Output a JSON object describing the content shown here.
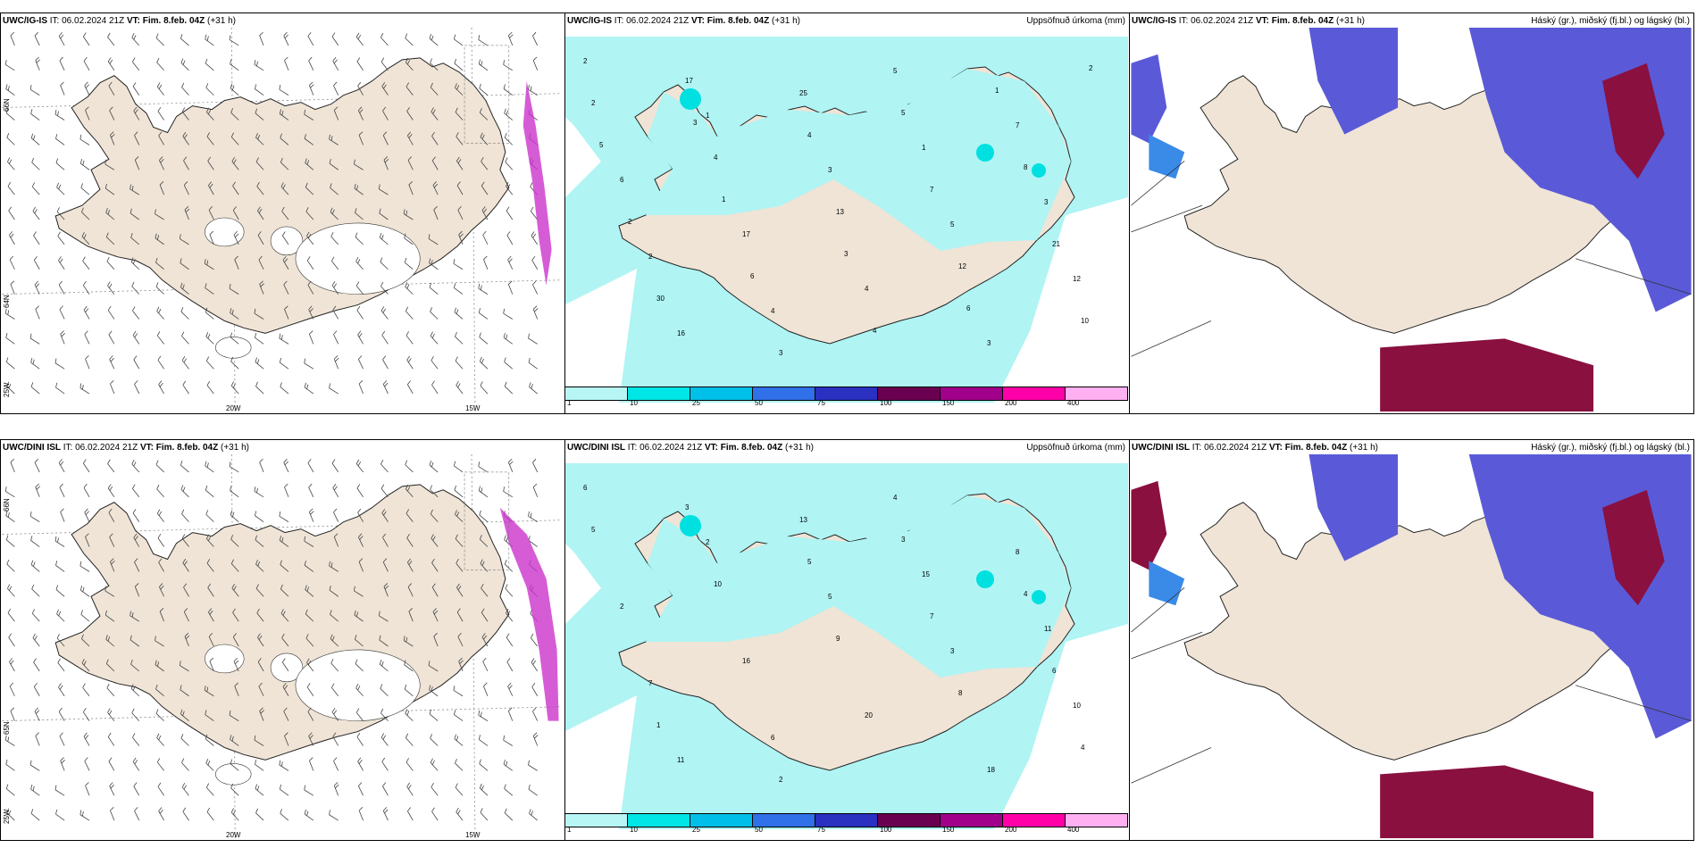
{
  "rows": [
    {
      "model": "UWC/IG-IS",
      "it_label": "IT:",
      "it_value": "06.02.2024 21Z",
      "vt_label": "VT:",
      "vt_value": "Fim. 8.feb. 04Z",
      "lead": "(+31 h)"
    },
    {
      "model": "UWC/DINI ISL",
      "it_label": "IT:",
      "it_value": "06.02.2024 21Z",
      "vt_label": "VT:",
      "vt_value": "Fim. 8.feb. 04Z",
      "lead": "(+31 h)"
    }
  ],
  "precip_title": "Uppsöfnuð úrkoma (mm)",
  "cloud_title": "Háský (gr.), miðský (fj.bl.) og lágský (bl.)",
  "lat_labels": [
    "66N",
    "64N",
    "65N"
  ],
  "lon_labels": [
    "20W",
    "15W",
    "25W"
  ],
  "legend": {
    "ticks": [
      "1",
      "10",
      "25",
      "50",
      "75",
      "100",
      "150",
      "200",
      "400"
    ],
    "colors": [
      "#b8f5f5",
      "#00e5e5",
      "#00bfe8",
      "#3070e8",
      "#2a30c0",
      "#6a0050",
      "#a0008a",
      "#ff00a8",
      "#ffb0f0"
    ]
  },
  "colors": {
    "land": "#efe4d6",
    "precip_light": "#b0f4f4",
    "precip_mid": "#00e0e0",
    "cloud_high": "#5a5ad8",
    "cloud_mid": "#3a8ae8",
    "cloud_low": "#8a1040",
    "wind_magenta": "#cc33cc"
  },
  "precip_values_top": [
    "2",
    "1",
    "3",
    "5",
    "12",
    "16",
    "25",
    "1",
    "3",
    "2",
    "4",
    "5",
    "7",
    "6",
    "17",
    "4",
    "3",
    "2",
    "4",
    "13",
    "12",
    "10",
    "17",
    "4",
    "7",
    "21",
    "30",
    "3",
    "5",
    "8",
    "2",
    "6",
    "4",
    "1",
    "5",
    "1",
    "3",
    "6",
    "2",
    "3"
  ],
  "precip_values_bottom": [
    "6",
    "2",
    "5",
    "3",
    "10",
    "11",
    "13",
    "15",
    "11",
    "7",
    "6",
    "4",
    "8",
    "2",
    "16",
    "20",
    "18",
    "5",
    "10",
    "9",
    "8",
    "4",
    "3",
    "5",
    "7",
    "6",
    "1",
    "2",
    "3",
    "4"
  ]
}
